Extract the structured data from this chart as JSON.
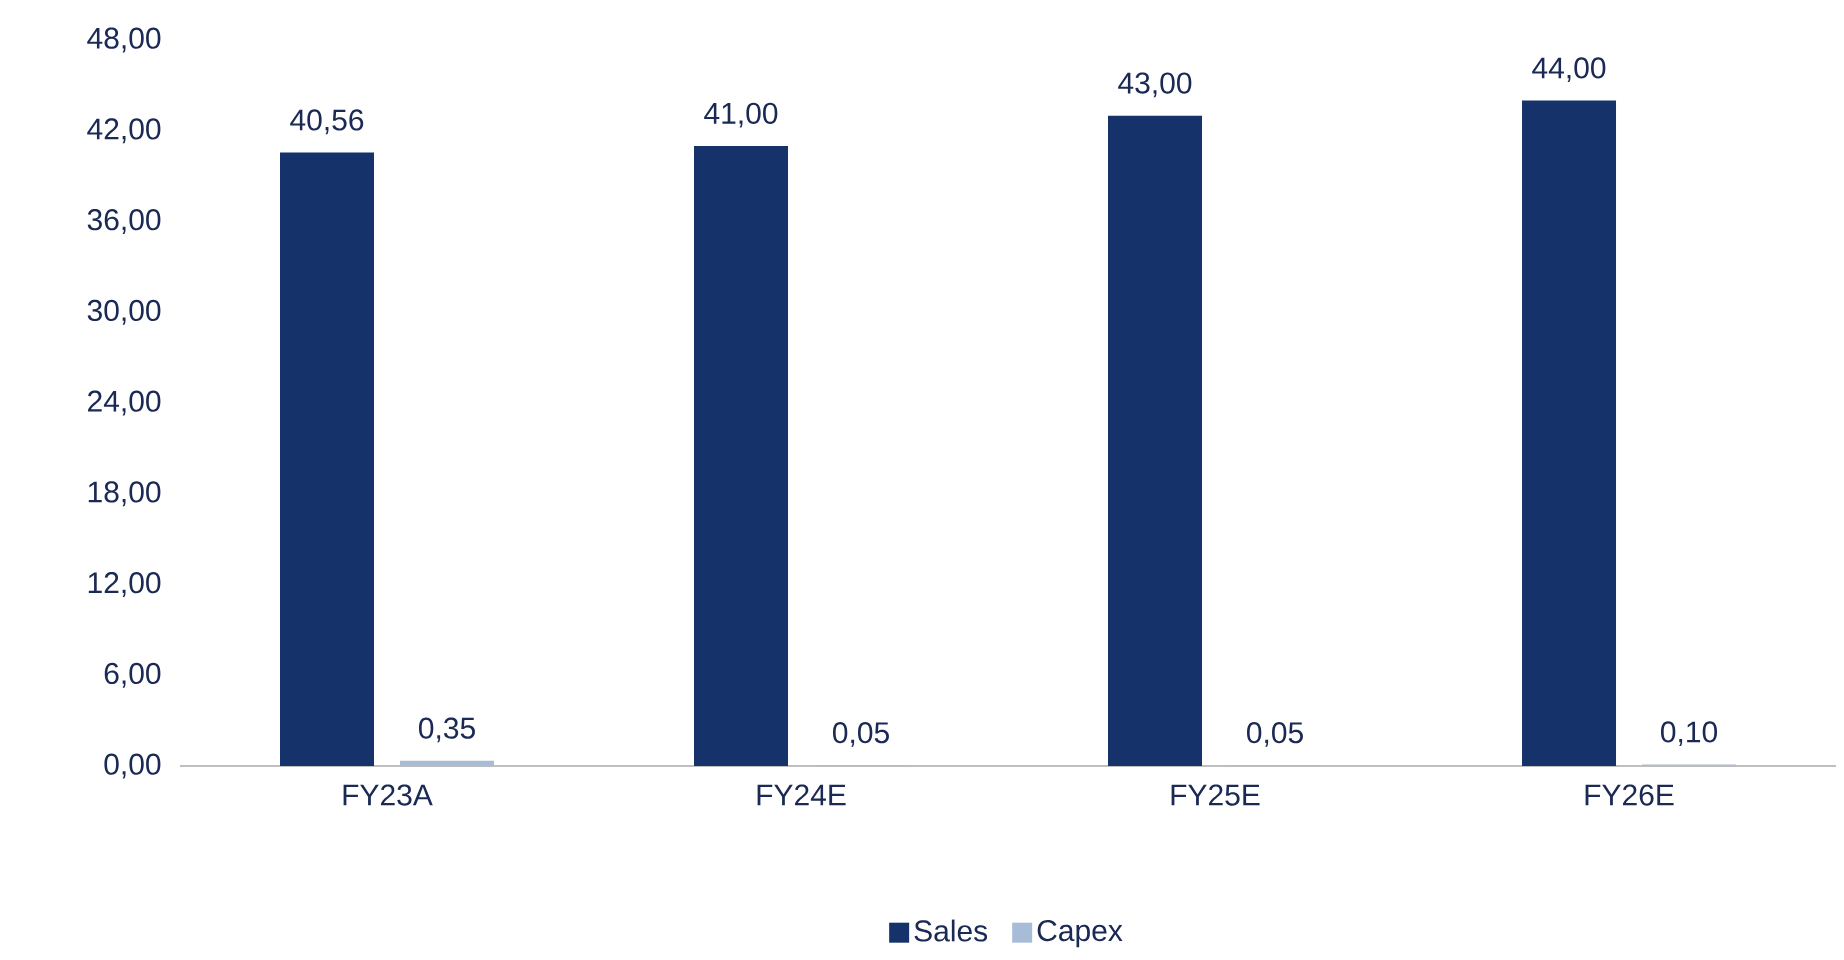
{
  "chart_data": {
    "type": "bar",
    "categories": [
      "FY23A",
      "FY24E",
      "FY25E",
      "FY26E"
    ],
    "series": [
      {
        "name": "Sales",
        "color": "#15326a",
        "values": [
          40.56,
          41.0,
          43.0,
          44.0
        ],
        "value_labels": [
          "40,56",
          "41,00",
          "43,00",
          "44,00"
        ]
      },
      {
        "name": "Capex",
        "color": "#a7bcd7",
        "values": [
          0.35,
          0.05,
          0.05,
          0.1
        ],
        "value_labels": [
          "0,35",
          "0,05",
          "0,05",
          "0,10"
        ]
      }
    ],
    "ylim": [
      0,
      48
    ],
    "yticks": [
      {
        "value": 0,
        "label": "0,00"
      },
      {
        "value": 6,
        "label": "6,00"
      },
      {
        "value": 12,
        "label": "12,00"
      },
      {
        "value": 18,
        "label": "18,00"
      },
      {
        "value": 24,
        "label": "24,00"
      },
      {
        "value": 30,
        "label": "30,00"
      },
      {
        "value": 36,
        "label": "36,00"
      },
      {
        "value": 42,
        "label": "42,00"
      },
      {
        "value": 48,
        "label": "48,00"
      }
    ],
    "legend": "bottom"
  }
}
